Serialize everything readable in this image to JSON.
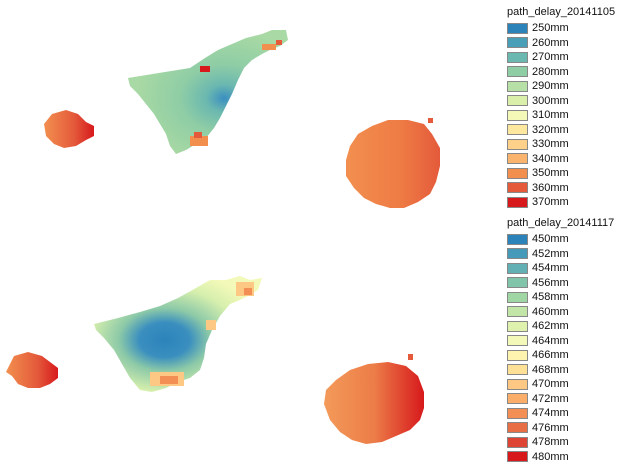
{
  "layers": [
    {
      "id": "top",
      "title": "path_delay_20141105",
      "entries": [
        {
          "label": "250mm",
          "color": "#2b83ba"
        },
        {
          "label": "260mm",
          "color": "#4a9fb8"
        },
        {
          "label": "270mm",
          "color": "#6bb8b0"
        },
        {
          "label": "280mm",
          "color": "#8fcda5"
        },
        {
          "label": "290mm",
          "color": "#b6e0a5"
        },
        {
          "label": "300mm",
          "color": "#daefaa"
        },
        {
          "label": "310mm",
          "color": "#f5f9b8"
        },
        {
          "label": "320mm",
          "color": "#fee8a0"
        },
        {
          "label": "330mm",
          "color": "#fdd18a"
        },
        {
          "label": "340mm",
          "color": "#fbb46d"
        },
        {
          "label": "350mm",
          "color": "#f28f4f"
        },
        {
          "label": "360mm",
          "color": "#e45a3b"
        },
        {
          "label": "370mm",
          "color": "#d7191c"
        }
      ]
    },
    {
      "id": "bottom",
      "title": "path_delay_20141117",
      "entries": [
        {
          "label": "450mm",
          "color": "#2b83ba"
        },
        {
          "label": "452mm",
          "color": "#4599b9"
        },
        {
          "label": "454mm",
          "color": "#62b0b3"
        },
        {
          "label": "456mm",
          "color": "#80c4aa"
        },
        {
          "label": "458mm",
          "color": "#a0d6a4"
        },
        {
          "label": "460mm",
          "color": "#c1e6a7"
        },
        {
          "label": "462mm",
          "color": "#def2ae"
        },
        {
          "label": "464mm",
          "color": "#f3f9b8"
        },
        {
          "label": "466mm",
          "color": "#fff3b0"
        },
        {
          "label": "468mm",
          "color": "#fee097"
        },
        {
          "label": "470mm",
          "color": "#fdc883"
        },
        {
          "label": "472mm",
          "color": "#fbad6a"
        },
        {
          "label": "474mm",
          "color": "#f38f55"
        },
        {
          "label": "476mm",
          "color": "#e86e45"
        },
        {
          "label": "478mm",
          "color": "#dd4433"
        },
        {
          "label": "480mm",
          "color": "#d7191c"
        }
      ]
    }
  ]
}
